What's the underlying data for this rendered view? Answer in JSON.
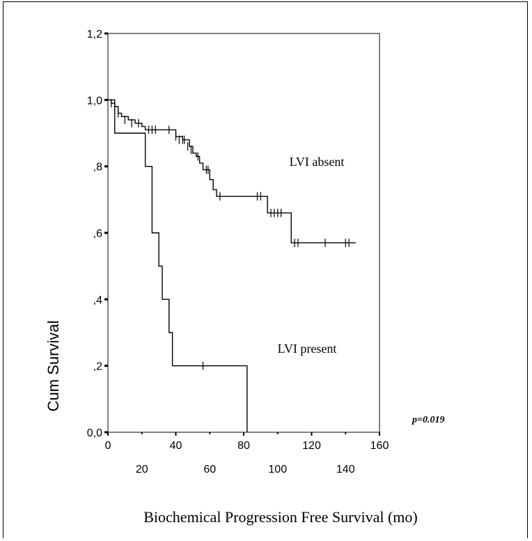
{
  "chart_data": {
    "type": "line",
    "subtype": "kaplan-meier",
    "xlabel": "Biochemical Progression Free Survival (mo)",
    "ylabel": "Cum Survival",
    "xlim": [
      0,
      160
    ],
    "ylim": [
      0,
      1.2
    ],
    "x_ticks_major": [
      "0",
      "40",
      "80",
      "120",
      "160"
    ],
    "x_ticks_minor": [
      "20",
      "60",
      "100",
      "140"
    ],
    "y_ticks": [
      "0,0",
      ",2",
      ",4",
      ",6",
      ",8",
      "1,0",
      "1,2"
    ],
    "annotation": "p=0.019",
    "grid": false,
    "series": [
      {
        "name": "LVI absent",
        "color": "#000000",
        "steps": [
          [
            0,
            1.0
          ],
          [
            2,
            0.99
          ],
          [
            4,
            0.98
          ],
          [
            6,
            0.96
          ],
          [
            8,
            0.95
          ],
          [
            12,
            0.94
          ],
          [
            16,
            0.93
          ],
          [
            20,
            0.92
          ],
          [
            22,
            0.91
          ],
          [
            38,
            0.91
          ],
          [
            40,
            0.89
          ],
          [
            44,
            0.88
          ],
          [
            48,
            0.86
          ],
          [
            50,
            0.84
          ],
          [
            52,
            0.83
          ],
          [
            54,
            0.81
          ],
          [
            56,
            0.79
          ],
          [
            60,
            0.76
          ],
          [
            62,
            0.73
          ],
          [
            64,
            0.71
          ],
          [
            92,
            0.71
          ],
          [
            94,
            0.66
          ],
          [
            106,
            0.66
          ],
          [
            108,
            0.57
          ],
          [
            146,
            0.57
          ]
        ],
        "censored": [
          [
            2,
            0.99
          ],
          [
            4,
            0.98
          ],
          [
            6,
            0.96
          ],
          [
            10,
            0.94
          ],
          [
            14,
            0.93
          ],
          [
            18,
            0.93
          ],
          [
            24,
            0.91
          ],
          [
            26,
            0.91
          ],
          [
            28,
            0.91
          ],
          [
            36,
            0.91
          ],
          [
            40,
            0.89
          ],
          [
            42,
            0.88
          ],
          [
            44,
            0.88
          ],
          [
            45,
            0.88
          ],
          [
            47,
            0.86
          ],
          [
            49,
            0.85
          ],
          [
            53,
            0.83
          ],
          [
            58,
            0.79
          ],
          [
            59,
            0.79
          ],
          [
            66,
            0.71
          ],
          [
            88,
            0.71
          ],
          [
            90,
            0.71
          ],
          [
            96,
            0.66
          ],
          [
            98,
            0.66
          ],
          [
            100,
            0.66
          ],
          [
            102,
            0.66
          ],
          [
            110,
            0.57
          ],
          [
            112,
            0.57
          ],
          [
            128,
            0.57
          ],
          [
            140,
            0.57
          ],
          [
            142,
            0.57
          ]
        ]
      },
      {
        "name": "LVI present",
        "color": "#000000",
        "steps": [
          [
            0,
            1.0
          ],
          [
            4,
            0.9
          ],
          [
            22,
            0.8
          ],
          [
            26,
            0.6
          ],
          [
            30,
            0.5
          ],
          [
            32,
            0.4
          ],
          [
            36,
            0.3
          ],
          [
            38,
            0.2
          ],
          [
            82,
            0.2
          ],
          [
            82,
            0.0
          ]
        ],
        "censored": [
          [
            56,
            0.2
          ]
        ]
      }
    ]
  }
}
